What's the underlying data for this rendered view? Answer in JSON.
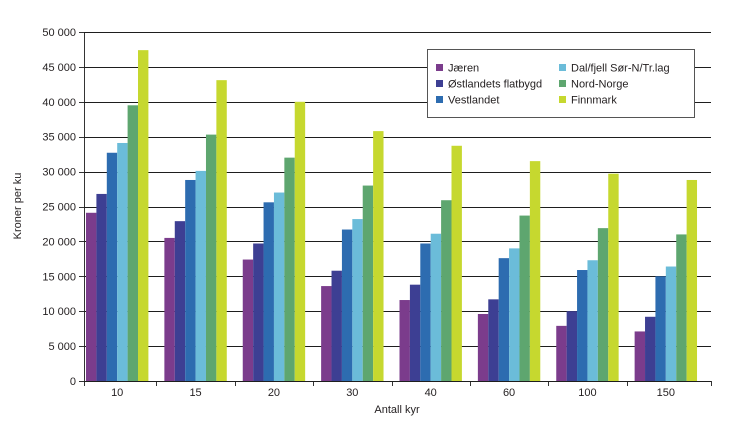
{
  "chart_data": {
    "type": "bar",
    "xlabel": "Antall kyr",
    "ylabel": "Kroner per ku",
    "ylim": [
      0,
      50000
    ],
    "yticks": [
      0,
      5000,
      10000,
      15000,
      20000,
      25000,
      30000,
      35000,
      40000,
      45000,
      50000
    ],
    "yticklabels": [
      "0",
      "5 000",
      "10 000",
      "15 000",
      "20 000",
      "25 000",
      "30 000",
      "35 000",
      "40 000",
      "45 000",
      "50 000"
    ],
    "categories": [
      "10",
      "15",
      "20",
      "30",
      "40",
      "60",
      "100",
      "150"
    ],
    "series": [
      {
        "name": "Jæren",
        "color": "#7b3c8c",
        "values": [
          24100,
          20500,
          17400,
          13600,
          11600,
          9600,
          7900,
          7100
        ]
      },
      {
        "name": "Østlandets flatbygd",
        "color": "#3d3f93",
        "values": [
          26800,
          22900,
          19700,
          15800,
          13800,
          11700,
          10000,
          9200
        ]
      },
      {
        "name": "Vestlandet",
        "color": "#2d6cb0",
        "values": [
          32700,
          28800,
          25600,
          21700,
          19700,
          17600,
          15900,
          15000
        ]
      },
      {
        "name": "Dal/fjell Sør-N/Tr.lag",
        "color": "#6bbcd9",
        "values": [
          34100,
          30100,
          27000,
          23200,
          21100,
          19000,
          17300,
          16400
        ]
      },
      {
        "name": "Nord-Norge",
        "color": "#5ea66f",
        "values": [
          39500,
          35300,
          32000,
          28000,
          25900,
          23700,
          21900,
          21000
        ]
      },
      {
        "name": "Finnmark",
        "color": "#c6d82f",
        "values": [
          47400,
          43100,
          40000,
          35800,
          33700,
          31500,
          29700,
          28800
        ]
      }
    ],
    "grid": true,
    "legend": "top-right"
  }
}
